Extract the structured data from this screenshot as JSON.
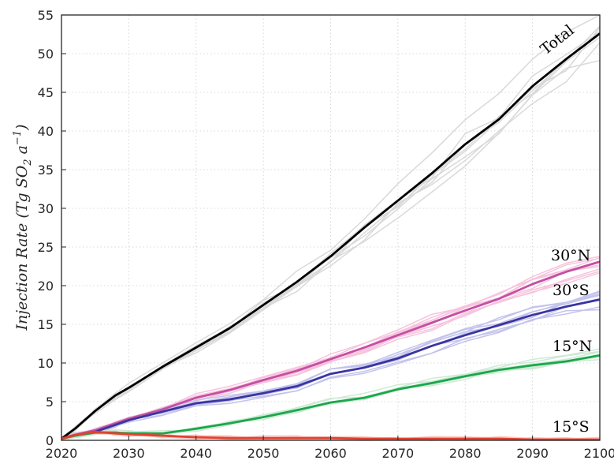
{
  "chart_data": {
    "type": "line",
    "title": "",
    "xlabel": "",
    "ylabel": "Injection Rate (Tg SO",
    "ylabel_sub": "2",
    "ylabel_mid": " a",
    "ylabel_sup": "−1",
    "ylabel_end": ")",
    "xlim": [
      2020,
      2100
    ],
    "ylim": [
      0,
      55
    ],
    "xticks": [
      2020,
      2030,
      2040,
      2050,
      2060,
      2070,
      2080,
      2090,
      2100
    ],
    "yticks": [
      0,
      5,
      10,
      15,
      20,
      25,
      30,
      35,
      40,
      45,
      50,
      55
    ],
    "grid": true,
    "x": [
      2020,
      2022,
      2025,
      2028,
      2030,
      2035,
      2040,
      2045,
      2050,
      2055,
      2060,
      2065,
      2070,
      2075,
      2080,
      2085,
      2090,
      2095,
      2100
    ],
    "series": [
      {
        "name": "Total",
        "color": "#000000",
        "ensemble_color": "#d9d9d9",
        "values": [
          0.2,
          1.5,
          3.8,
          5.8,
          6.8,
          9.5,
          12.0,
          14.5,
          17.5,
          20.5,
          23.8,
          27.5,
          31.0,
          34.5,
          38.3,
          41.5,
          45.8,
          49.3,
          52.6
        ]
      },
      {
        "name": "30°N",
        "color": "#c44fa3",
        "ensemble_color": "#f6c4dd",
        "values": [
          0.2,
          0.7,
          1.3,
          2.2,
          2.8,
          4.0,
          5.5,
          6.5,
          7.8,
          9.0,
          10.5,
          12.0,
          13.6,
          15.2,
          16.8,
          18.3,
          20.2,
          21.8,
          23.1
        ]
      },
      {
        "name": "30°S",
        "color": "#3a35a0",
        "ensemble_color": "#c3c3ec",
        "values": [
          0.2,
          0.7,
          1.1,
          2.0,
          2.6,
          3.7,
          4.8,
          5.3,
          6.1,
          7.0,
          8.6,
          9.4,
          10.6,
          12.2,
          13.6,
          14.9,
          16.2,
          17.3,
          18.2
        ]
      },
      {
        "name": "15°N",
        "color": "#1aa74b",
        "ensemble_color": "#cfe9d5",
        "values": [
          0.2,
          0.6,
          1.0,
          1.0,
          0.9,
          0.9,
          1.5,
          2.2,
          3.0,
          3.9,
          4.9,
          5.5,
          6.6,
          7.4,
          8.3,
          9.1,
          9.7,
          10.2,
          11.0
        ]
      },
      {
        "name": "15°S",
        "color": "#e4412f",
        "ensemble_color": "#f8c8c2",
        "values": [
          0.2,
          0.7,
          1.1,
          0.9,
          0.8,
          0.6,
          0.4,
          0.3,
          0.3,
          0.3,
          0.3,
          0.2,
          0.2,
          0.2,
          0.2,
          0.2,
          0.1,
          0.1,
          0.1
        ]
      }
    ]
  },
  "labels": [
    {
      "text": "Total",
      "color": "#000000"
    },
    {
      "text": "30°N",
      "color": "#c44fa3"
    },
    {
      "text": "30°S",
      "color": "#3a35a0"
    },
    {
      "text": "15°N",
      "color": "#1aa74b"
    },
    {
      "text": "15°S",
      "color": "#e4412f"
    }
  ]
}
